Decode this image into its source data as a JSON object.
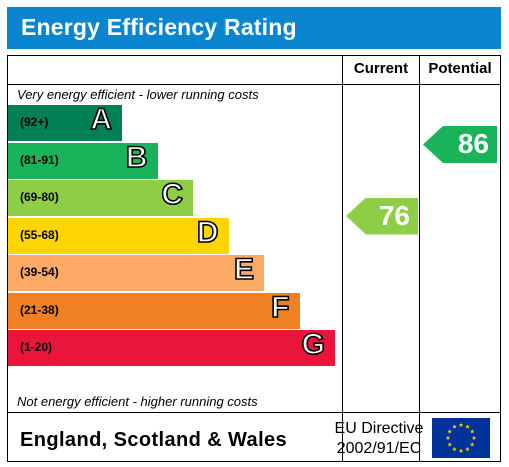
{
  "header": {
    "title": "Energy Efficiency Rating"
  },
  "columns": {
    "current": "Current",
    "potential": "Potential"
  },
  "notes": {
    "top": "Very energy efficient - lower running costs",
    "bottom": "Not energy efficient - higher running costs"
  },
  "chart_data": {
    "type": "bar",
    "title": "Energy Efficiency Rating",
    "bands": [
      {
        "letter": "A",
        "range": "(92+)",
        "color": "#008054"
      },
      {
        "letter": "B",
        "range": "(81-91)",
        "color": "#19b459"
      },
      {
        "letter": "C",
        "range": "(69-80)",
        "color": "#8dce46"
      },
      {
        "letter": "D",
        "range": "(55-68)",
        "color": "#ffd500"
      },
      {
        "letter": "E",
        "range": "(39-54)",
        "color": "#fcaa65"
      },
      {
        "letter": "F",
        "range": "(21-38)",
        "color": "#ef8023"
      },
      {
        "letter": "G",
        "range": "(1-20)",
        "color": "#e9153b"
      }
    ],
    "current": {
      "value": 76,
      "band": "C",
      "color": "#8dce46"
    },
    "potential": {
      "value": 86,
      "band": "B",
      "color": "#19b459"
    }
  },
  "footer": {
    "country": "England, Scotland & Wales",
    "directive_line1": "EU Directive",
    "directive_line2": "2002/91/EC"
  },
  "icons": {
    "flag": "eu-flag-icon"
  }
}
